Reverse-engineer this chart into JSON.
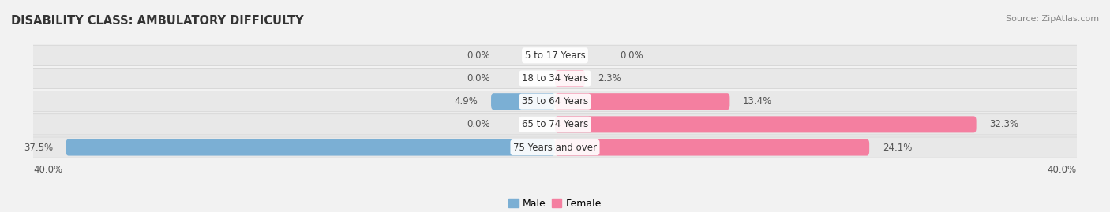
{
  "title": "DISABILITY CLASS: AMBULATORY DIFFICULTY",
  "source": "Source: ZipAtlas.com",
  "categories": [
    "5 to 17 Years",
    "18 to 34 Years",
    "35 to 64 Years",
    "65 to 74 Years",
    "75 Years and over"
  ],
  "male_values": [
    0.0,
    0.0,
    4.9,
    0.0,
    37.5
  ],
  "female_values": [
    0.0,
    2.3,
    13.4,
    32.3,
    24.1
  ],
  "male_labels": [
    "0.0%",
    "0.0%",
    "4.9%",
    "0.0%",
    "37.5%"
  ],
  "female_labels": [
    "0.0%",
    "2.3%",
    "13.4%",
    "32.3%",
    "24.1%"
  ],
  "male_color": "#7bafd4",
  "female_color": "#f47fa0",
  "bg_color": "#f2f2f2",
  "row_bg_color": "#e8e8e8",
  "row_bg_dark": "#dcdcdc",
  "axis_limit": 40.0,
  "axis_label_left": "40.0%",
  "axis_label_right": "40.0%",
  "title_fontsize": 10.5,
  "source_fontsize": 8,
  "label_fontsize": 8.5,
  "category_fontsize": 8.5,
  "legend_fontsize": 9
}
